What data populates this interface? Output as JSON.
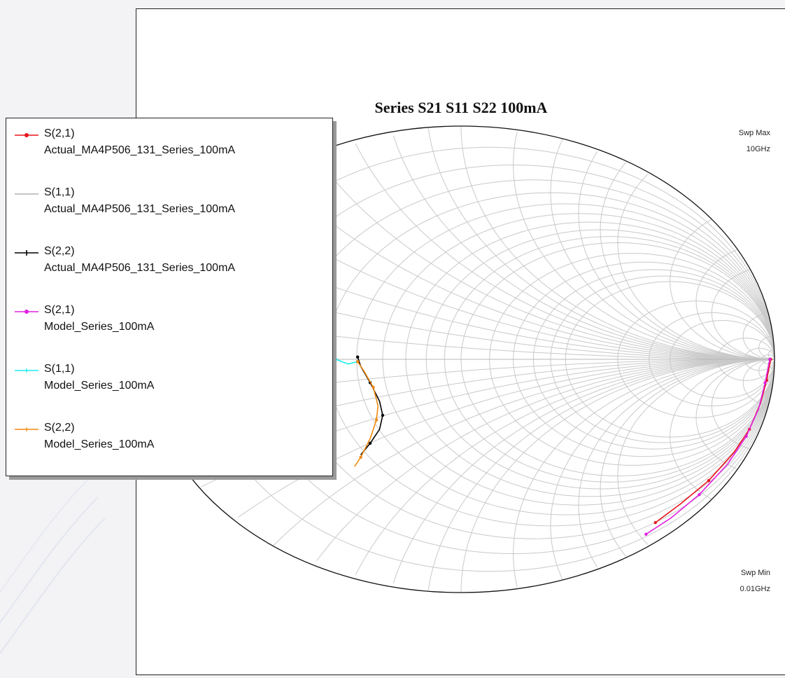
{
  "chart_data": {
    "type": "smith",
    "title": "Series S21 S11 S22 100mA",
    "sweep": {
      "max_label": "Swp Max",
      "max_value": "10GHz",
      "min_label": "Swp Min",
      "min_value": "0.01GHz"
    },
    "legend": [
      {
        "series": "S(2,1)",
        "dataset": "Actual_MA4P506_131_Series_100mA",
        "color": "#e8141c",
        "marker": "dot"
      },
      {
        "series": "S(1,1)",
        "dataset": "Actual_MA4P506_131_Series_100mA",
        "color": "#b0b0b0",
        "marker": "none"
      },
      {
        "series": "S(2,2)",
        "dataset": "Actual_MA4P506_131_Series_100mA",
        "color": "#000000",
        "marker": "plus"
      },
      {
        "series": "S(2,1)",
        "dataset": "Model_Series_100mA",
        "color": "#e020e0",
        "marker": "dot"
      },
      {
        "series": "S(1,1)",
        "dataset": "Model_Series_100mA",
        "color": "#18ecec",
        "marker": "tick"
      },
      {
        "series": "S(2,2)",
        "dataset": "Model_Series_100mA",
        "color": "#f08a10",
        "marker": "tick"
      }
    ],
    "series": [
      {
        "name": "S(2,1) Actual_MA4P506_131_Series_100mA",
        "color": "#e8141c",
        "points": [
          [
            0.62,
            -0.7
          ],
          [
            0.7,
            -0.62
          ],
          [
            0.79,
            -0.52
          ],
          [
            0.87,
            -0.4
          ],
          [
            0.92,
            -0.3
          ],
          [
            0.955,
            -0.19
          ],
          [
            0.975,
            -0.09
          ],
          [
            0.985,
            -0.02
          ],
          [
            0.988,
            0.0
          ]
        ]
      },
      {
        "name": "S(2,1) Model_Series_100mA",
        "color": "#e020e0",
        "points": [
          [
            0.59,
            -0.75
          ],
          [
            0.67,
            -0.68
          ],
          [
            0.76,
            -0.58
          ],
          [
            0.85,
            -0.45
          ],
          [
            0.91,
            -0.33
          ],
          [
            0.95,
            -0.21
          ],
          [
            0.97,
            -0.1
          ],
          [
            0.982,
            -0.02
          ],
          [
            0.985,
            0.0
          ]
        ]
      },
      {
        "name": "S(1,1) Model_Series_100mA",
        "color": "#18ecec",
        "points": [
          [
            -0.33,
            -0.01
          ],
          [
            -0.36,
            -0.02
          ],
          [
            -0.4,
            0.0
          ],
          [
            -0.46,
            0.04
          ],
          [
            -0.53,
            0.1
          ],
          [
            -0.6,
            0.18
          ],
          [
            -0.65,
            0.25
          ],
          [
            -0.68,
            0.3
          ]
        ]
      },
      {
        "name": "S(2,2) Actual_MA4P506_131_Series_100mA",
        "color": "#000000",
        "points": [
          [
            -0.33,
            0.01
          ],
          [
            -0.32,
            -0.03
          ],
          [
            -0.29,
            -0.1
          ],
          [
            -0.26,
            -0.18
          ],
          [
            -0.25,
            -0.24
          ],
          [
            -0.26,
            -0.3
          ],
          [
            -0.29,
            -0.36
          ],
          [
            -0.32,
            -0.41
          ]
        ]
      },
      {
        "name": "S(2,2) Model_Series_100mA",
        "color": "#f08a10",
        "points": [
          [
            -0.33,
            -0.01
          ],
          [
            -0.31,
            -0.05
          ],
          [
            -0.28,
            -0.12
          ],
          [
            -0.265,
            -0.2
          ],
          [
            -0.27,
            -0.26
          ],
          [
            -0.29,
            -0.34
          ],
          [
            -0.32,
            -0.42
          ],
          [
            -0.34,
            -0.46
          ]
        ]
      }
    ]
  }
}
